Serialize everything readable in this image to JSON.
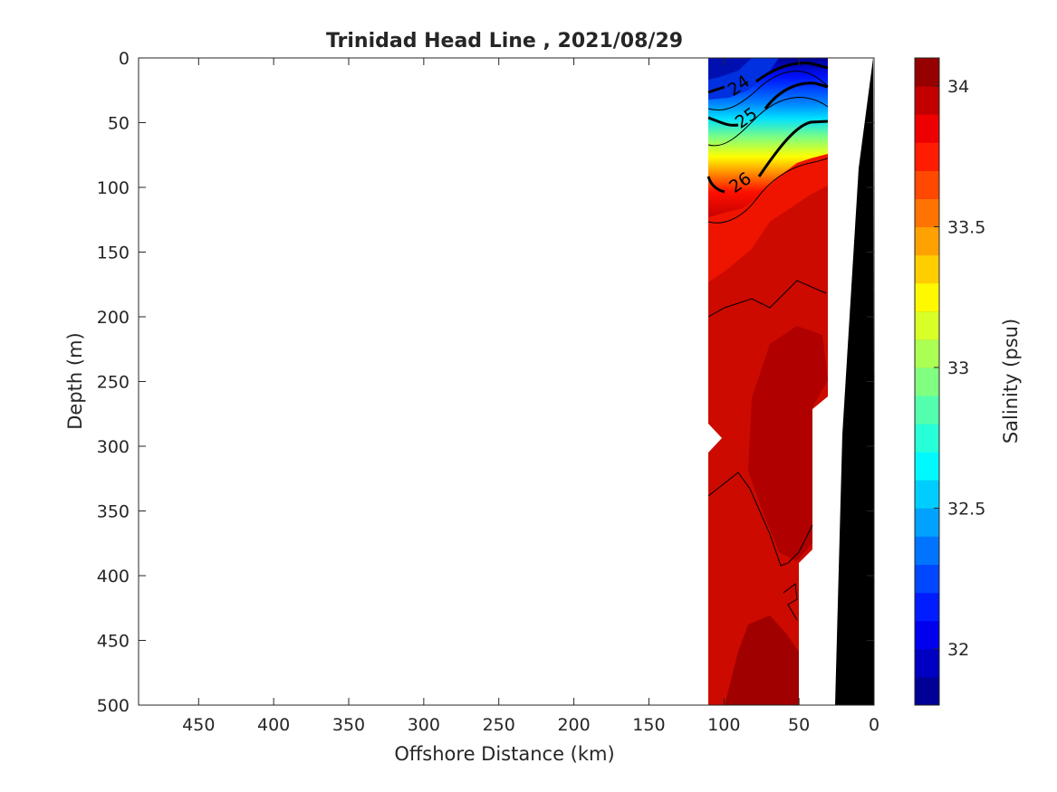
{
  "chart_data": {
    "type": "heatmap",
    "title": "Trinidad Head Line , 2021/08/29",
    "xlabel": "Offshore Distance (km)",
    "ylabel": "Depth (m)",
    "xlim": [
      490,
      0
    ],
    "ylim": [
      0,
      500
    ],
    "x_reversed": true,
    "y_reversed": true,
    "xticks": [
      450,
      400,
      350,
      300,
      250,
      200,
      150,
      100,
      50,
      0
    ],
    "yticks": [
      0,
      50,
      100,
      150,
      200,
      250,
      300,
      350,
      400,
      450,
      500
    ],
    "grid": false,
    "colorbar": {
      "label": "Salinity (psu)",
      "range": [
        31.8,
        34.1
      ],
      "ticks": [
        32,
        32.5,
        33,
        33.5,
        34
      ],
      "colormap": "jet",
      "levels": 23
    },
    "contour_labels": [
      {
        "value": "24",
        "x": 88,
        "y": 25
      },
      {
        "value": "25",
        "x": 83,
        "y": 50
      },
      {
        "value": "26",
        "x": 87,
        "y": 100
      }
    ],
    "bathymetry_color": "#000000",
    "transect": {
      "x_start": 110,
      "x_end": 30
    }
  }
}
